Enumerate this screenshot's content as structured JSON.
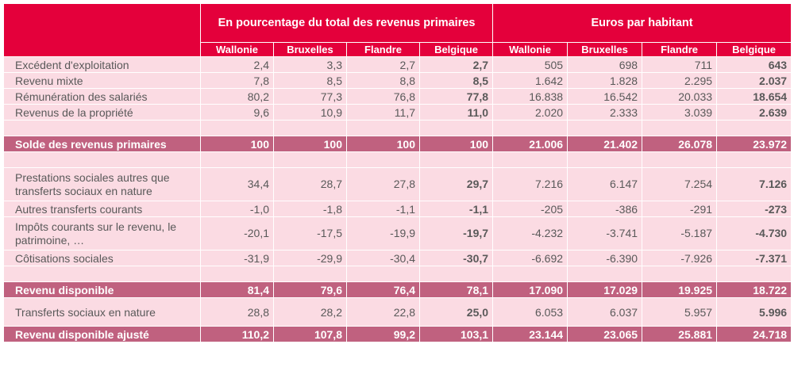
{
  "header": {
    "group_pct": "En pourcentage du total des revenus primaires",
    "group_eur": "Euros par habitant",
    "columns": [
      "Wallonie",
      "Bruxelles",
      "Flandre",
      "Belgique",
      "Wallonie",
      "Bruxelles",
      "Flandre",
      "Belgique"
    ]
  },
  "rows": [
    {
      "type": "data",
      "label": "Excédent d'exploitation",
      "values": [
        "2,4",
        "3,3",
        "2,7",
        "2,7",
        "505",
        "698",
        "711",
        "643"
      ]
    },
    {
      "type": "data",
      "label": "Revenu mixte",
      "values": [
        "7,8",
        "8,5",
        "8,8",
        "8,5",
        "1.642",
        "1.828",
        "2.295",
        "2.037"
      ]
    },
    {
      "type": "data",
      "label": "Rémunération des salariés",
      "values": [
        "80,2",
        "77,3",
        "76,8",
        "77,8",
        "16.838",
        "16.542",
        "20.033",
        "18.654"
      ]
    },
    {
      "type": "data",
      "label": "Revenus de la propriété",
      "values": [
        "9,6",
        "10,9",
        "11,7",
        "11,0",
        "2.020",
        "2.333",
        "3.039",
        "2.639"
      ]
    },
    {
      "type": "spacer"
    },
    {
      "type": "total",
      "label": "Solde des revenus primaires",
      "values": [
        "100",
        "100",
        "100",
        "100",
        "21.006",
        "21.402",
        "26.078",
        "23.972"
      ]
    },
    {
      "type": "spacer"
    },
    {
      "type": "tall",
      "label": "Prestations sociales autres que transferts sociaux en nature",
      "values": [
        "34,4",
        "28,7",
        "27,8",
        "29,7",
        "7.216",
        "6.147",
        "7.254",
        "7.126"
      ]
    },
    {
      "type": "data",
      "label": "Autres transferts courants",
      "values": [
        "-1,0",
        "-1,8",
        "-1,1",
        "-1,1",
        "-205",
        "-386",
        "-291",
        "-273"
      ]
    },
    {
      "type": "tall",
      "label": "Impôts courants sur le revenu, le patrimoine, …",
      "values": [
        "-20,1",
        "-17,5",
        "-19,9",
        "-19,7",
        "-4.232",
        "-3.741",
        "-5.187",
        "-4.730"
      ]
    },
    {
      "type": "data",
      "label": "Côtisations sociales",
      "values": [
        "-31,9",
        "-29,9",
        "-30,4",
        "-30,7",
        "-6.692",
        "-6.390",
        "-7.926",
        "-7.371"
      ]
    },
    {
      "type": "spacer"
    },
    {
      "type": "total",
      "label": "Revenu disponible",
      "values": [
        "81,4",
        "79,6",
        "76,4",
        "78,1",
        "17.090",
        "17.029",
        "19.925",
        "18.722"
      ]
    },
    {
      "type": "mid",
      "label": "Transferts sociaux en nature",
      "values": [
        "28,8",
        "28,2",
        "22,8",
        "25,0",
        "6.053",
        "6.037",
        "5.957",
        "5.996"
      ]
    },
    {
      "type": "total",
      "label": "Revenu disponible ajusté",
      "values": [
        "110,2",
        "107,8",
        "99,2",
        "103,1",
        "23.144",
        "23.065",
        "25.881",
        "24.718"
      ]
    }
  ],
  "colors": {
    "header": "#e4003b",
    "total_row": "#c0617f",
    "data_row": "#fbdbe3"
  }
}
